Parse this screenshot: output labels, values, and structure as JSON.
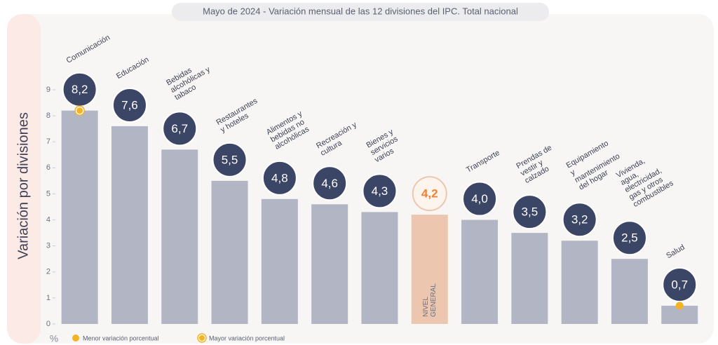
{
  "chart_data": {
    "type": "bar",
    "title": "Mayo de 2024 - Variación mensual de las 12 divisiones del IPC. Total nacional",
    "ylabel": "Variación por divisiones",
    "unit": "%",
    "categories": [
      "Comunicación",
      "Educación",
      "Bebidas alcohólicas y tabaco",
      "Restaurantes y hoteles",
      "Alimentos y bebidas no alcohólicas",
      "Recreación y cultura",
      "Bienes y servicios varios",
      "NIVEL GENERAL",
      "Transporte",
      "Prendas de vestir y calzado",
      "Equipamiento y mantenimiento del hogar",
      "Vivienda, agua, electricidad, gas y otros combustibles",
      "Salud"
    ],
    "values": [
      8.2,
      7.6,
      6.7,
      5.5,
      4.8,
      4.6,
      4.3,
      4.2,
      4.0,
      3.5,
      3.2,
      2.5,
      0.7
    ],
    "value_labels": [
      "8,2",
      "7,6",
      "6,7",
      "5,5",
      "4,8",
      "4,6",
      "4,3",
      "4,2",
      "4,0",
      "3,5",
      "3,2",
      "2,5",
      "0,7"
    ],
    "color": "#b2b6c4",
    "highlight_index": 7,
    "highlight_color": "#ecc6af",
    "ylim": [
      0,
      9
    ],
    "yticks": [
      0,
      1,
      2,
      3,
      4,
      5,
      6,
      7,
      8,
      9
    ],
    "legend": [
      {
        "name": "Menor variación porcentual",
        "color": "#f5b323"
      },
      {
        "name": "Mayor variación porcentual",
        "color": "#f5b323"
      }
    ]
  }
}
